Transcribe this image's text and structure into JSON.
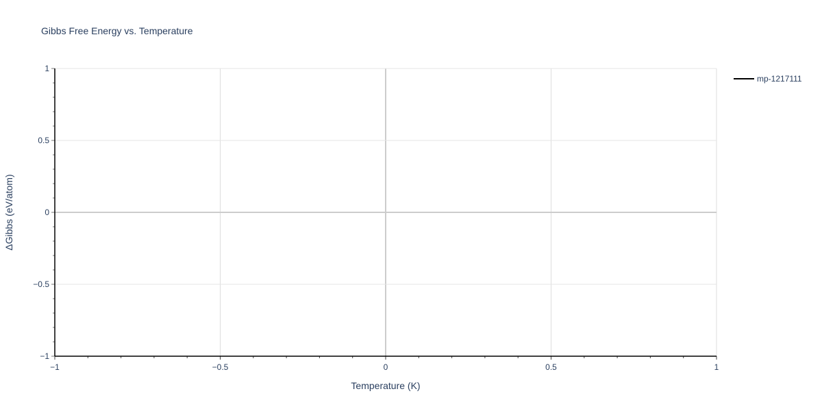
{
  "chart_data": {
    "type": "line",
    "title": "Gibbs Free Energy vs. Temperature",
    "xlabel": "Temperature (K)",
    "ylabel": "ΔGibbs (eV/atom)",
    "xlim": [
      -1,
      1
    ],
    "ylim": [
      -1,
      1
    ],
    "xticks": [
      -1,
      -0.5,
      0,
      0.5,
      1
    ],
    "yticks": [
      -1,
      -0.5,
      0,
      0.5,
      1
    ],
    "xtick_labels": [
      "−1",
      "−0.5",
      "0",
      "0.5",
      "1"
    ],
    "ytick_labels": [
      "−1",
      "−0.5",
      "0",
      "0.5",
      "1"
    ],
    "minor_tick_step": 0.1,
    "grid": true,
    "legend_position": "top-right",
    "series": [
      {
        "name": "mp-1217111",
        "color": "#000000",
        "x": [],
        "y": []
      }
    ]
  }
}
